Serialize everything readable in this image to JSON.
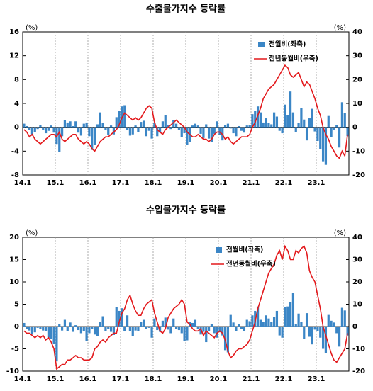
{
  "chart_data": [
    {
      "type": "bar-line",
      "title": "수출물가지수 등락률",
      "y_unit": "(%)",
      "y2_unit": "(%)",
      "categories": [
        "14.1",
        null,
        null,
        null,
        null,
        null,
        null,
        null,
        null,
        null,
        null,
        null,
        "15.1",
        null,
        null,
        null,
        null,
        null,
        null,
        null,
        null,
        null,
        null,
        null,
        "16.1",
        null,
        null,
        null,
        null,
        null,
        null,
        null,
        null,
        null,
        null,
        null,
        "17.1",
        null,
        null,
        null,
        null,
        null,
        null,
        null,
        null,
        null,
        null,
        null,
        "18.1",
        null,
        null,
        null,
        null,
        null,
        null,
        null,
        null,
        null,
        null,
        null,
        "19.1",
        null,
        null,
        null,
        null,
        null,
        null,
        null,
        null,
        null,
        null,
        null,
        "20.1",
        null,
        null,
        null,
        null,
        null,
        null,
        null,
        null,
        null,
        null,
        null,
        "21.1",
        null,
        null,
        null,
        null,
        null,
        null,
        null,
        null,
        null,
        null,
        null,
        "22.1",
        null,
        null,
        null,
        null,
        null,
        null,
        null,
        null,
        null,
        null,
        null,
        "23.1",
        null,
        null,
        null,
        null,
        null,
        null,
        null,
        null,
        null,
        null,
        null
      ],
      "ylim": [
        -8,
        16
      ],
      "yticks": [
        -8,
        -4,
        0,
        4,
        8,
        12,
        16
      ],
      "y2lim": [
        -20,
        40
      ],
      "y2ticks": [
        -20,
        -10,
        0,
        10,
        20,
        30,
        40
      ],
      "grid": true,
      "legend": "top-right",
      "series": [
        {
          "name": "전월비(좌축)",
          "kind": "bar",
          "color": "#3b86c6",
          "axis": "y",
          "values": [
            0.6,
            0.2,
            -0.5,
            -1.2,
            -0.8,
            -0.3,
            0.4,
            -0.5,
            -1.0,
            -0.6,
            0.3,
            -0.9,
            -2.8,
            -4.1,
            -1.5,
            1.2,
            0.8,
            1.0,
            0.2,
            1.0,
            -0.9,
            -1.4,
            0.6,
            0.8,
            -1.5,
            -3.8,
            -2.9,
            0.5,
            2.5,
            0.7,
            -0.4,
            -1.3,
            0.3,
            -1.2,
            1.7,
            2.8,
            3.5,
            3.7,
            -0.5,
            -1.4,
            -1.2,
            0.3,
            -0.8,
            0.9,
            1.1,
            -1.5,
            -0.6,
            -1.9,
            0.8,
            -1.5,
            -0.9,
            1.0,
            2.0,
            0.4,
            -0.3,
            1.2,
            0.6,
            -0.5,
            -1.7,
            -1.0,
            -3.0,
            -2.5,
            0.3,
            0.6,
            0.3,
            -1.1,
            -1.8,
            0.5,
            -1.9,
            -2.5,
            -1.1,
            1.0,
            -1.3,
            -2.2,
            0.4,
            0.6,
            -0.2,
            -1.0,
            -1.5,
            0.2,
            -0.6,
            -0.9,
            0.3,
            0.4,
            2.2,
            2.8,
            3.5,
            2.5,
            0.8,
            1.5,
            0.7,
            0.5,
            2.5,
            1.8,
            -0.6,
            -1.0,
            3.8,
            2.0,
            6.0,
            2.5,
            -0.8,
            0.7,
            3.2,
            1.3,
            -2.2,
            1.5,
            3.1,
            -0.7,
            -2.3,
            -3.7,
            -5.7,
            -6.3,
            1.9,
            -1.6,
            -0.5,
            0.4,
            -3.4,
            4.2,
            2.4,
            -1.5
          ]
        },
        {
          "name": "전년동월비(우축)",
          "kind": "line",
          "color": "#e3191c",
          "axis": "y2",
          "values": [
            -1,
            -2,
            -4,
            -3,
            -5,
            -6,
            -7,
            -6,
            -5,
            -4,
            -3,
            -3,
            -4,
            -2,
            -5,
            -6,
            -5,
            -4,
            -3,
            -3,
            -5,
            -6,
            -7,
            -6,
            -7,
            -9,
            -10,
            -8,
            -6,
            -5,
            -4,
            -4,
            -3,
            -2,
            -1,
            1,
            4,
            6,
            5,
            4,
            3,
            4,
            3,
            4,
            6,
            8,
            9,
            8,
            2,
            -1,
            -2,
            -3,
            -1,
            0,
            1,
            2,
            3,
            2,
            1,
            0,
            -2,
            -3,
            -4,
            -4,
            -3,
            -4,
            -5,
            -5,
            -6,
            -5,
            -3,
            -2,
            -2,
            -3,
            -5,
            -4,
            -6,
            -7,
            -6,
            -5,
            -4,
            -4,
            -4,
            -3,
            0,
            2,
            5,
            8,
            12,
            14,
            16,
            17,
            18,
            20,
            22,
            24,
            26,
            25,
            22,
            21,
            22,
            23,
            20,
            17,
            19,
            18,
            15,
            12,
            8,
            5,
            0,
            -3,
            -5,
            -8,
            -10,
            -12,
            -13,
            -10,
            -12,
            -3
          ]
        }
      ]
    },
    {
      "type": "bar-line",
      "title": "수입물가지수 등락률",
      "y_unit": "(%)",
      "y2_unit": "(%)",
      "categories": [
        "14.1",
        null,
        null,
        null,
        null,
        null,
        null,
        null,
        null,
        null,
        null,
        null,
        "15.1",
        null,
        null,
        null,
        null,
        null,
        null,
        null,
        null,
        null,
        null,
        null,
        "16.1",
        null,
        null,
        null,
        null,
        null,
        null,
        null,
        null,
        null,
        null,
        null,
        "17.1",
        null,
        null,
        null,
        null,
        null,
        null,
        null,
        null,
        null,
        null,
        null,
        "18.1",
        null,
        null,
        null,
        null,
        null,
        null,
        null,
        null,
        null,
        null,
        null,
        "19.1",
        null,
        null,
        null,
        null,
        null,
        null,
        null,
        null,
        null,
        null,
        null,
        "20.1",
        null,
        null,
        null,
        null,
        null,
        null,
        null,
        null,
        null,
        null,
        null,
        "21.1",
        null,
        null,
        null,
        null,
        null,
        null,
        null,
        null,
        null,
        null,
        null,
        "22.1",
        null,
        null,
        null,
        null,
        null,
        null,
        null,
        null,
        null,
        null,
        null,
        "23.1",
        null,
        null,
        null,
        null,
        null,
        null,
        null,
        null,
        null,
        null,
        null
      ],
      "ylim": [
        -10,
        20
      ],
      "yticks": [
        -10,
        -5,
        0,
        5,
        10,
        15,
        20
      ],
      "y2lim": [
        -20,
        40
      ],
      "y2ticks": [
        -20,
        -10,
        0,
        10,
        20,
        30,
        40
      ],
      "grid": true,
      "legend": "top-center",
      "series": [
        {
          "name": "전월비(좌축)",
          "kind": "bar",
          "color": "#3b86c6",
          "axis": "y",
          "values": [
            0.8,
            -0.5,
            -0.9,
            -1.8,
            -1.3,
            -0.3,
            -0.5,
            -0.9,
            -1.1,
            -2.5,
            -2.8,
            -3.9,
            -7.8,
            0.5,
            -0.9,
            1.5,
            -1.0,
            0.9,
            -1.2,
            0.3,
            -0.8,
            -1.5,
            -1.0,
            -3.3,
            -1.5,
            -0.5,
            -1.8,
            -2.1,
            1.1,
            2.3,
            -1.0,
            -0.5,
            -1.2,
            -1.9,
            4.3,
            3.5,
            4.1,
            -1.0,
            2.5,
            -1.1,
            -2.2,
            -0.9,
            -1.0,
            1.0,
            1.5,
            -0.5,
            -0.3,
            -2.5,
            1.8,
            -0.8,
            -1.2,
            1.3,
            2.0,
            -0.7,
            -1.5,
            1.8,
            -0.5,
            -0.8,
            -1.5,
            -3.3,
            -3.1,
            1.0,
            0.8,
            1.5,
            -0.5,
            -1.8,
            -1.2,
            -3.5,
            -1.0,
            0.6,
            -1.5,
            -2.5,
            -1.3,
            -2.0,
            -5.3,
            -5.8,
            2.6,
            0.9,
            -1.1,
            0.5,
            -0.6,
            -1.0,
            1.5,
            1.2,
            2.5,
            3.5,
            4.5,
            1.5,
            1.0,
            2.5,
            1.8,
            1.0,
            2.2,
            3.5,
            -2.0,
            -2.5,
            4.3,
            4.5,
            5.5,
            7.5,
            0.5,
            2.9,
            1.0,
            -2.8,
            3.0,
            -2.3,
            -4.0,
            -0.7,
            -1.0,
            -2.5,
            -5.0,
            -6.0,
            2.6,
            1.3,
            0.9,
            -1.5,
            -4.5,
            4.2,
            3.6,
            -2.0
          ]
        },
        {
          "name": "전년동월비(우축)",
          "kind": "line",
          "color": "#e3191c",
          "axis": "y2",
          "values": [
            -2,
            -3,
            -3,
            -4,
            -5,
            -4,
            -5,
            -4,
            -6,
            -5,
            -7,
            -10,
            -19,
            -18,
            -17,
            -17,
            -15,
            -15,
            -14,
            -13,
            -14,
            -14,
            -15,
            -15,
            -15,
            -14,
            -10,
            -9,
            -7,
            -6,
            -7,
            -5,
            -4,
            -3,
            -3,
            2,
            6,
            8,
            12,
            14,
            10,
            7,
            5,
            5,
            8,
            10,
            11,
            12,
            6,
            2,
            -2,
            -3,
            -1,
            4,
            6,
            8,
            9,
            10,
            12,
            10,
            2,
            1,
            -1,
            -2,
            -2,
            -1,
            -4,
            -2,
            -3,
            -4,
            -5,
            -3,
            -2,
            -3,
            -6,
            -11,
            -14,
            -13,
            -11,
            -10,
            -10,
            -9,
            -8,
            -6,
            -2,
            2,
            8,
            12,
            16,
            20,
            24,
            26,
            28,
            32,
            34,
            30,
            36,
            34,
            30,
            30,
            34,
            33,
            35,
            36,
            33,
            25,
            22,
            20,
            14,
            8,
            0,
            -4,
            -8,
            -12,
            -15,
            -16,
            -14,
            -12,
            -10,
            -3
          ]
        }
      ]
    }
  ]
}
